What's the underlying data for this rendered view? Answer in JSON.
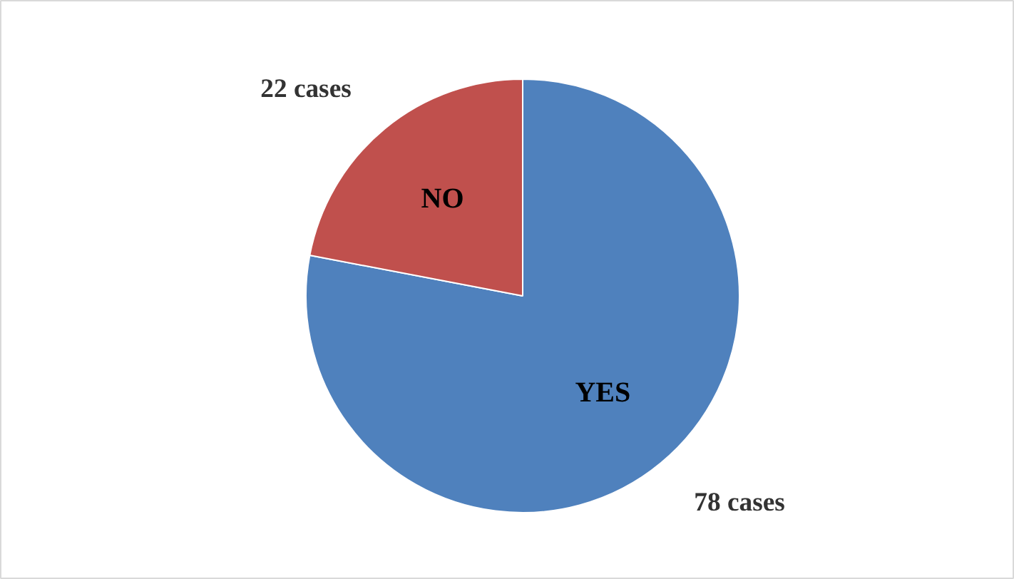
{
  "chart_data": {
    "type": "pie",
    "categories": [
      "YES",
      "NO"
    ],
    "values": [
      78,
      22
    ],
    "colors": [
      "#4f81bd",
      "#c0504d"
    ],
    "value_labels": [
      "78  cases",
      "22 cases"
    ],
    "legend": false
  }
}
